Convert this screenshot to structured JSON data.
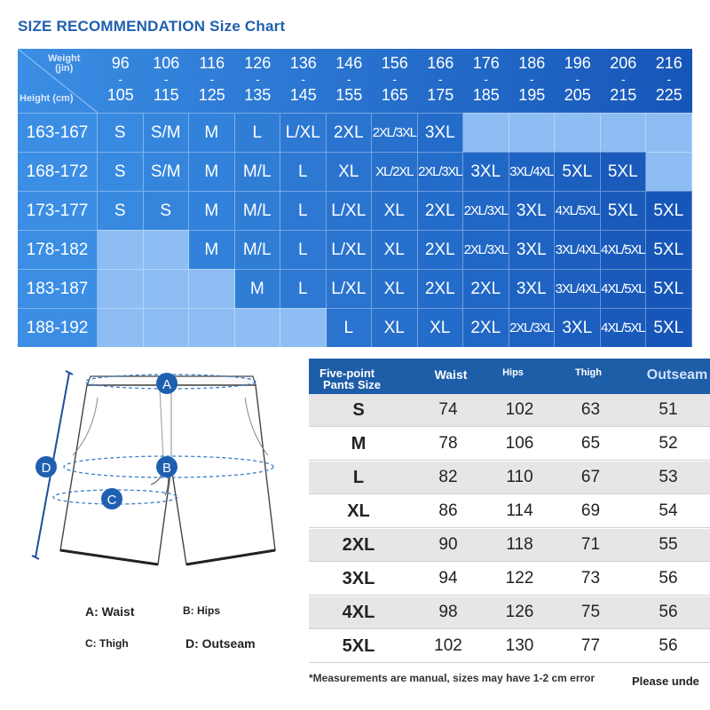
{
  "title": "SIZE RECOMMENDATION Size Chart",
  "grid": {
    "weight_label": "Weight",
    "weight_unit": "(jin)",
    "height_label": "Height (cm)",
    "weight_ranges": [
      {
        "lo": "96",
        "hi": "105"
      },
      {
        "lo": "106",
        "hi": "115"
      },
      {
        "lo": "116",
        "hi": "125"
      },
      {
        "lo": "126",
        "hi": "135"
      },
      {
        "lo": "136",
        "hi": "145"
      },
      {
        "lo": "146",
        "hi": "155"
      },
      {
        "lo": "156",
        "hi": "165"
      },
      {
        "lo": "166",
        "hi": "175"
      },
      {
        "lo": "176",
        "hi": "185"
      },
      {
        "lo": "186",
        "hi": "195"
      },
      {
        "lo": "196",
        "hi": "205"
      },
      {
        "lo": "206",
        "hi": "215"
      },
      {
        "lo": "216",
        "hi": "225"
      }
    ],
    "dash": "-",
    "rows": [
      {
        "height": "163-167",
        "sizes": [
          "S",
          "S/M",
          "M",
          "L",
          "L/XL",
          "2XL",
          "2XL/3XL",
          "3XL",
          "",
          "",
          "",
          "",
          ""
        ]
      },
      {
        "height": "168-172",
        "sizes": [
          "S",
          "S/M",
          "M",
          "M/L",
          "L",
          "XL",
          "XL/2XL",
          "2XL/3XL",
          "3XL",
          "3XL/4XL",
          "5XL",
          "5XL",
          ""
        ]
      },
      {
        "height": "173-177",
        "sizes": [
          "S",
          "S",
          "M",
          "M/L",
          "L",
          "L/XL",
          "XL",
          "2XL",
          "2XL/3XL",
          "3XL",
          "4XL/5XL",
          "5XL",
          "5XL"
        ]
      },
      {
        "height": "178-182",
        "sizes": [
          "",
          "",
          "M",
          "M/L",
          "L",
          "L/XL",
          "XL",
          "2XL",
          "2XL/3XL",
          "3XL",
          "3XL/4XL",
          "4XL/5XL",
          "5XL"
        ]
      },
      {
        "height": "183-187",
        "sizes": [
          "",
          "",
          "",
          "M",
          "L",
          "L/XL",
          "XL",
          "2XL",
          "2XL",
          "3XL",
          "3XL/4XL",
          "4XL/5XL",
          "5XL"
        ]
      },
      {
        "height": "188-192",
        "sizes": [
          "",
          "",
          "",
          "",
          "",
          "L",
          "XL",
          "XL",
          "2XL",
          "2XL/3XL",
          "3XL",
          "4XL/5XL",
          "5XL"
        ]
      }
    ],
    "colors": {
      "left": "#3b8ee4",
      "right": "#1656b8",
      "empty": "#8ebdf4"
    }
  },
  "diagram": {
    "markers": [
      "A",
      "B",
      "C",
      "D"
    ],
    "legend": {
      "waist": "A: Waist",
      "hips": "B: Hips",
      "thigh": "C: Thigh",
      "outseam": "D: Outseam"
    }
  },
  "measurements": {
    "header_size": "Five-point Pants Size",
    "header_size_line1": "Five-point",
    "header_size_line2": "Pants Size",
    "columns": [
      "Waist",
      "Hips",
      "Thigh",
      "Outseam"
    ],
    "rows": [
      {
        "size": "S",
        "waist": "74",
        "hips": "102",
        "thigh": "63",
        "outseam": "51"
      },
      {
        "size": "M",
        "waist": "78",
        "hips": "106",
        "thigh": "65",
        "outseam": "52"
      },
      {
        "size": "L",
        "waist": "82",
        "hips": "110",
        "thigh": "67",
        "outseam": "53"
      },
      {
        "size": "XL",
        "waist": "86",
        "hips": "114",
        "thigh": "69",
        "outseam": "54"
      },
      {
        "size": "2XL",
        "waist": "90",
        "hips": "118",
        "thigh": "71",
        "outseam": "55"
      },
      {
        "size": "3XL",
        "waist": "94",
        "hips": "122",
        "thigh": "73",
        "outseam": "56"
      },
      {
        "size": "4XL",
        "waist": "98",
        "hips": "126",
        "thigh": "75",
        "outseam": "56"
      },
      {
        "size": "5XL",
        "waist": "102",
        "hips": "130",
        "thigh": "77",
        "outseam": "56"
      }
    ],
    "row_colors": [
      "#e6e6e6",
      "#ffffff"
    ]
  },
  "notes": {
    "disclaimer": "*Measurements are manual, sizes may have 1-2 cm error",
    "trailing": "Please unde"
  }
}
